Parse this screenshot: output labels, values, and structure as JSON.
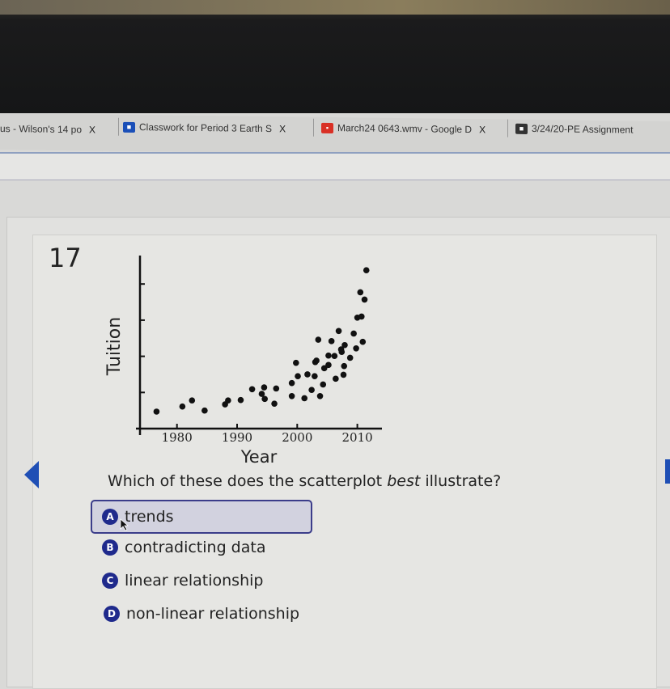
{
  "tabs": [
    {
      "label": "us - Wilson's 14 po",
      "icon": "none"
    },
    {
      "label": "Classwork for Period 3 Earth S",
      "icon": "classroom-icon",
      "color": "#1a4fb8"
    },
    {
      "label": "March24 0643.wmv - Google D",
      "icon": "video-icon",
      "color": "#d93025"
    },
    {
      "label": "3/24/20-PE Assignment",
      "icon": "classroom-icon",
      "color": "#333333"
    }
  ],
  "tab_close": "X",
  "question": {
    "number": "17",
    "text_before": "Which of these does the scatterplot ",
    "text_emph": "best",
    "text_after": " illustrate?",
    "options": [
      {
        "letter": "A",
        "label": "trends",
        "selected": true
      },
      {
        "letter": "B",
        "label": "contradicting data",
        "selected": false
      },
      {
        "letter": "C",
        "label": "linear relationship",
        "selected": false
      },
      {
        "letter": "D",
        "label": "non-linear relationship",
        "selected": false
      }
    ]
  },
  "colors": {
    "accent": "#1f2a8c",
    "nav": "#1f4fb5"
  },
  "chart_data": {
    "type": "scatter",
    "title": "",
    "xlabel": "Year",
    "ylabel": "Tuition",
    "xticks": [
      "1980",
      "1990",
      "2000",
      "2010"
    ],
    "xlim": [
      1974,
      2015
    ],
    "ylim": [
      0,
      4.6
    ],
    "y_tick_labels_shown": false,
    "grid": false,
    "points": [
      [
        1976.6,
        0.47
      ],
      [
        1980.9,
        0.61
      ],
      [
        1982.5,
        0.78
      ],
      [
        1984.6,
        0.5
      ],
      [
        1988.0,
        0.67
      ],
      [
        1988.5,
        0.78
      ],
      [
        1990.6,
        0.79
      ],
      [
        1992.5,
        1.09
      ],
      [
        1994.1,
        0.96
      ],
      [
        1994.5,
        1.14
      ],
      [
        1994.6,
        0.82
      ],
      [
        1996.2,
        0.69
      ],
      [
        1996.5,
        1.11
      ],
      [
        1999.1,
        0.9
      ],
      [
        1999.1,
        1.26
      ],
      [
        1999.8,
        1.82
      ],
      [
        2000.1,
        1.45
      ],
      [
        2001.2,
        0.84
      ],
      [
        2001.7,
        1.5
      ],
      [
        2002.4,
        1.07
      ],
      [
        2002.9,
        1.45
      ],
      [
        2003.0,
        1.84
      ],
      [
        2003.2,
        1.88
      ],
      [
        2003.5,
        2.46
      ],
      [
        2003.8,
        0.9
      ],
      [
        2004.3,
        1.22
      ],
      [
        2004.5,
        1.67
      ],
      [
        2005.2,
        1.76
      ],
      [
        2005.2,
        2.02
      ],
      [
        2005.7,
        2.42
      ],
      [
        2006.2,
        2.01
      ],
      [
        2006.4,
        1.38
      ],
      [
        2006.9,
        2.7
      ],
      [
        2007.3,
        2.19
      ],
      [
        2007.4,
        2.12
      ],
      [
        2007.9,
        2.31
      ],
      [
        2007.8,
        1.73
      ],
      [
        2007.7,
        1.49
      ],
      [
        2008.8,
        1.96
      ],
      [
        2009.4,
        2.63
      ],
      [
        2009.8,
        2.22
      ],
      [
        2010.0,
        3.07
      ],
      [
        2010.7,
        3.1
      ],
      [
        2010.9,
        2.4
      ],
      [
        2011.2,
        3.57
      ],
      [
        2010.5,
        3.77
      ],
      [
        2011.5,
        4.38
      ]
    ]
  }
}
